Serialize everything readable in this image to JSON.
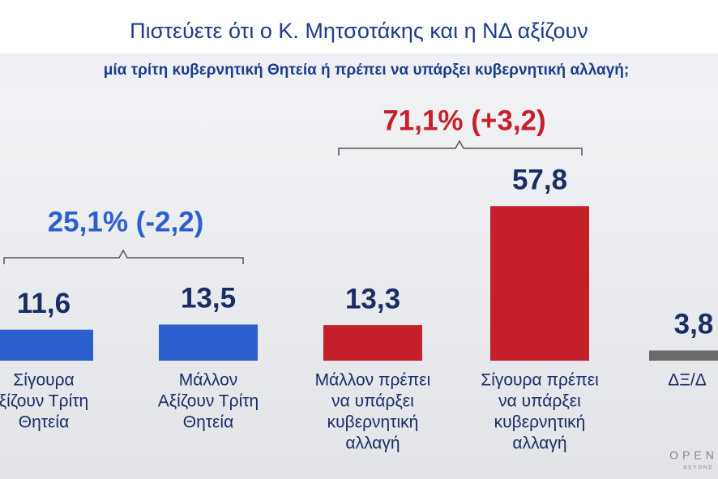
{
  "chart_data": {
    "type": "bar",
    "title": "Πιστεύετε ότι ο Κ. Μητσοτάκης και η ΝΔ αξίζουν",
    "subtitle": "μία τρίτη κυβερνητική Θητεία ή πρέπει να υπάρξει κυβερνητική αλλαγή;",
    "categories": [
      [
        "Σίγουρα",
        "ξίζουν Τρίτη",
        "Θητεία"
      ],
      [
        "Μάλλον",
        "Αξίζουν Τρίτη",
        "Θητεία"
      ],
      [
        "Μάλλον πρέπει",
        "να υπάρξει",
        "κυβερνητική",
        "αλλαγή"
      ],
      [
        "Σίγουρα πρέπει",
        "να υπάρξει",
        "κυβερνητική",
        "αλλαγή"
      ],
      [
        "ΔΞ/Δ"
      ]
    ],
    "values": [
      11.6,
      13.5,
      13.3,
      57.8,
      3.8
    ],
    "value_labels": [
      "11,6",
      "13,5",
      "13,3",
      "57,8",
      "3,8"
    ],
    "colors": [
      "#2d60cf",
      "#2d60cf",
      "#c6202b",
      "#c6202b",
      "#6a6a6a"
    ],
    "annotations": [
      {
        "text": "25,1% (-2,2)",
        "color": "#2d60cf"
      },
      {
        "text": "71,1% (+3,2)",
        "color": "#c6202b"
      }
    ],
    "logo": [
      "OPEN",
      "BEYOND"
    ]
  }
}
